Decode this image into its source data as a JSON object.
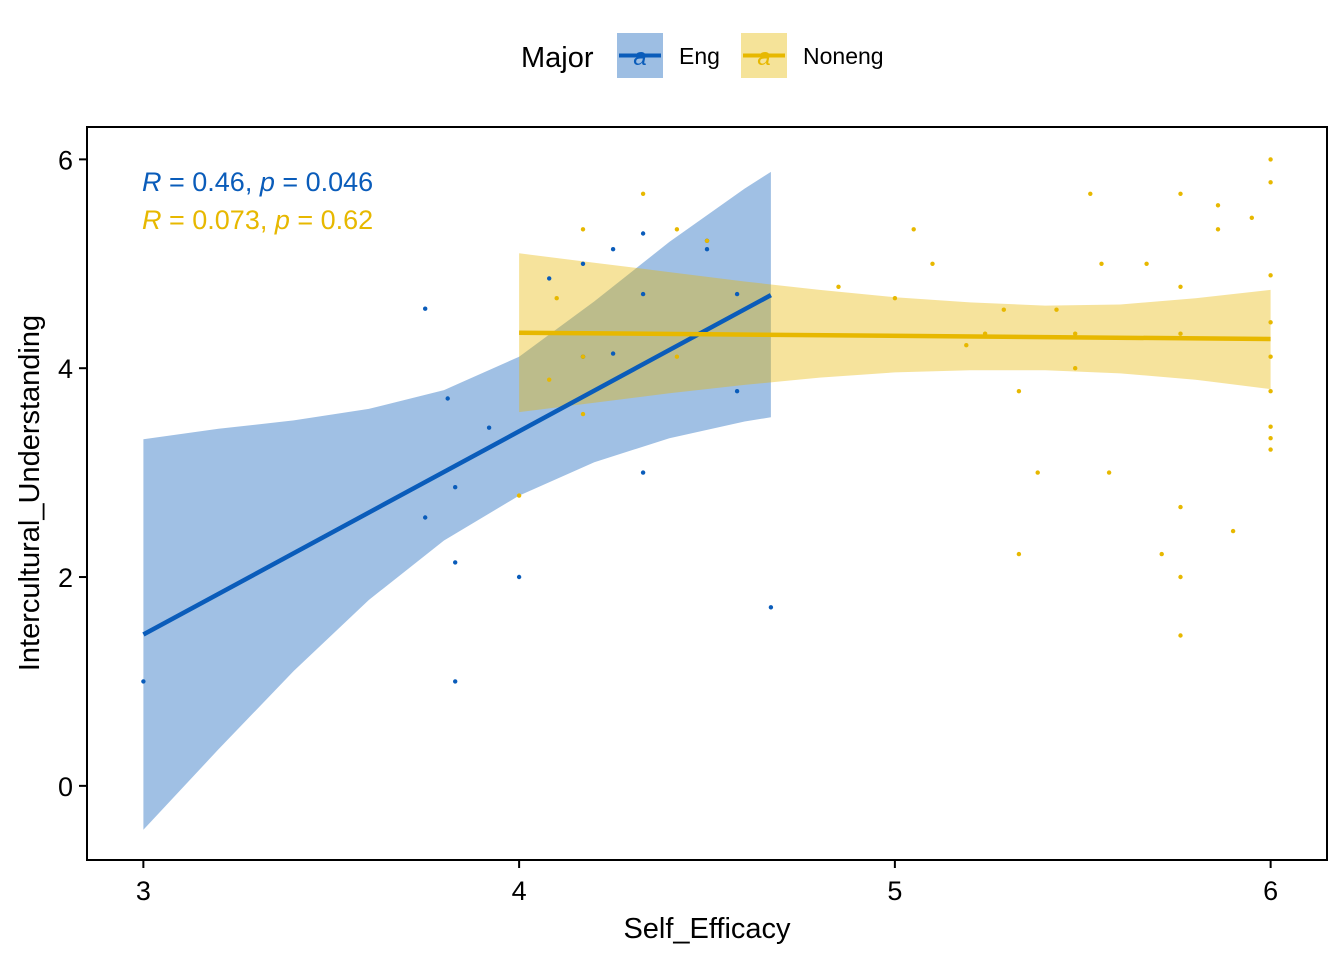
{
  "chart_data": {
    "type": "scatter",
    "xlabel": "Self_Efficacy",
    "ylabel": "Intercultural_Understanding",
    "xlim": [
      2.85,
      6.15
    ],
    "ylim": [
      -0.71,
      6.31
    ],
    "x_ticks": [
      3,
      4,
      5,
      6
    ],
    "y_ticks": [
      0,
      2,
      4,
      6
    ],
    "grid": false,
    "legend": {
      "title": "Major",
      "placement": "top",
      "entries": [
        {
          "label": "Eng",
          "glyph": "a",
          "color": "#0A5CBA"
        },
        {
          "label": "Noneng",
          "glyph": "a",
          "color": "#E7B800"
        }
      ]
    },
    "annotations": [
      {
        "r_symbol": "R",
        "r_text": " = 0.46, ",
        "p_symbol": "p",
        "p_text": " = 0.046",
        "color": "#0A5CBA"
      },
      {
        "r_symbol": "R",
        "r_text": " = 0.073, ",
        "p_symbol": "p",
        "p_text": " = 0.62",
        "color": "#E7B800"
      }
    ],
    "series": [
      {
        "name": "Eng",
        "color": "#0A5CBA",
        "band_color": "#0A5CBA",
        "points": [
          [
            3.0,
            1.0
          ],
          [
            3.75,
            4.57
          ],
          [
            3.75,
            2.57
          ],
          [
            3.81,
            3.71
          ],
          [
            3.83,
            2.86
          ],
          [
            3.83,
            2.14
          ],
          [
            3.83,
            1.0
          ],
          [
            3.92,
            3.43
          ],
          [
            4.0,
            2.0
          ],
          [
            4.08,
            4.86
          ],
          [
            4.17,
            5.0
          ],
          [
            4.17,
            4.11
          ],
          [
            4.25,
            5.14
          ],
          [
            4.25,
            4.14
          ],
          [
            4.33,
            5.29
          ],
          [
            4.33,
            4.71
          ],
          [
            4.33,
            3.0
          ],
          [
            4.5,
            5.14
          ],
          [
            4.5,
            5.22
          ],
          [
            4.58,
            4.71
          ],
          [
            4.58,
            3.78
          ],
          [
            4.67,
            1.71
          ]
        ],
        "fit": {
          "x": [
            3.0,
            4.67
          ],
          "y": [
            1.45,
            4.7
          ]
        },
        "ci": {
          "x": [
            3.0,
            3.2,
            3.4,
            3.6,
            3.8,
            4.0,
            4.2,
            4.4,
            4.6,
            4.67
          ],
          "lower": [
            -0.42,
            0.35,
            1.1,
            1.78,
            2.35,
            2.78,
            3.1,
            3.33,
            3.49,
            3.53
          ],
          "upper": [
            3.32,
            3.42,
            3.5,
            3.61,
            3.79,
            4.11,
            4.64,
            5.21,
            5.72,
            5.88
          ]
        }
      },
      {
        "name": "Noneng",
        "color": "#E7B800",
        "band_color": "#E7B800",
        "points": [
          [
            4.0,
            2.78
          ],
          [
            4.08,
            3.89
          ],
          [
            4.1,
            4.67
          ],
          [
            4.17,
            5.33
          ],
          [
            4.17,
            4.11
          ],
          [
            4.17,
            3.56
          ],
          [
            4.33,
            5.67
          ],
          [
            4.42,
            5.33
          ],
          [
            4.42,
            4.11
          ],
          [
            4.5,
            5.22
          ],
          [
            4.85,
            4.78
          ],
          [
            5.0,
            4.67
          ],
          [
            5.05,
            5.33
          ],
          [
            5.1,
            5.0
          ],
          [
            5.19,
            4.22
          ],
          [
            5.24,
            4.33
          ],
          [
            5.29,
            4.56
          ],
          [
            5.33,
            3.78
          ],
          [
            5.33,
            2.22
          ],
          [
            5.38,
            3.0
          ],
          [
            5.43,
            4.56
          ],
          [
            5.48,
            4.33
          ],
          [
            5.48,
            4.0
          ],
          [
            5.52,
            5.67
          ],
          [
            5.55,
            5.0
          ],
          [
            5.57,
            3.0
          ],
          [
            5.67,
            5.0
          ],
          [
            5.71,
            2.22
          ],
          [
            5.76,
            5.67
          ],
          [
            5.76,
            4.78
          ],
          [
            5.76,
            4.33
          ],
          [
            5.76,
            2.67
          ],
          [
            5.76,
            2.0
          ],
          [
            5.76,
            1.44
          ],
          [
            5.86,
            5.56
          ],
          [
            5.86,
            5.33
          ],
          [
            5.9,
            2.44
          ],
          [
            5.95,
            5.44
          ],
          [
            6.0,
            6.0
          ],
          [
            6.0,
            5.78
          ],
          [
            6.0,
            4.89
          ],
          [
            6.0,
            4.44
          ],
          [
            6.0,
            4.11
          ],
          [
            6.0,
            3.78
          ],
          [
            6.0,
            3.44
          ],
          [
            6.0,
            3.33
          ],
          [
            6.0,
            3.22
          ]
        ],
        "fit": {
          "x": [
            4.0,
            6.0
          ],
          "y": [
            4.34,
            4.28
          ]
        },
        "ci": {
          "x": [
            4.0,
            4.2,
            4.4,
            4.6,
            4.8,
            5.0,
            5.2,
            5.4,
            5.6,
            5.8,
            6.0
          ],
          "lower": [
            3.58,
            3.67,
            3.76,
            3.84,
            3.91,
            3.96,
            3.98,
            3.98,
            3.95,
            3.89,
            3.8
          ],
          "upper": [
            5.1,
            5.01,
            4.92,
            4.83,
            4.75,
            4.68,
            4.63,
            4.6,
            4.61,
            4.67,
            4.75
          ]
        }
      }
    ]
  }
}
